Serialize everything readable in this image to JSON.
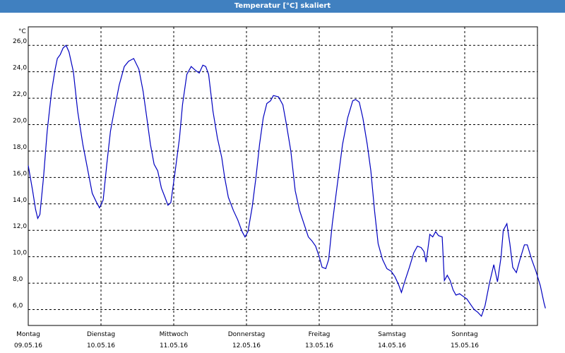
{
  "window": {
    "title": "Temperatur [°C] skaliert"
  },
  "chart_data": {
    "type": "line",
    "title": "Temperatur [°C] skaliert",
    "yunit": "°C",
    "ylim": [
      4.8,
      27.4
    ],
    "yticks": [
      6,
      8,
      10,
      12,
      14,
      16,
      18,
      20,
      22,
      24,
      26
    ],
    "ytick_labels": [
      "6,0",
      "8,0",
      "10,0",
      "12,0",
      "14,0",
      "16,0",
      "18,0",
      "20,0",
      "22,0",
      "24,0",
      "26,0"
    ],
    "xlim": [
      0,
      7
    ],
    "xticks": [
      {
        "day": "Montag",
        "date": "09.05.16"
      },
      {
        "day": "Dienstag",
        "date": "10.05.16"
      },
      {
        "day": "Mittwoch",
        "date": "11.05.16"
      },
      {
        "day": "Donnerstag",
        "date": "12.05.16"
      },
      {
        "day": "Freitag",
        "date": "13.05.16"
      },
      {
        "day": "Samstag",
        "date": "14.05.16"
      },
      {
        "day": "Sonntag",
        "date": "15.05.16"
      }
    ],
    "grid": true,
    "series": [
      {
        "color": "#0000c0",
        "points": [
          [
            0.0,
            16.9
          ],
          [
            0.06,
            15.0
          ],
          [
            0.1,
            13.6
          ],
          [
            0.13,
            12.9
          ],
          [
            0.16,
            13.2
          ],
          [
            0.21,
            16.0
          ],
          [
            0.26,
            19.5
          ],
          [
            0.32,
            22.5
          ],
          [
            0.37,
            24.2
          ],
          [
            0.4,
            25.0
          ],
          [
            0.44,
            25.3
          ],
          [
            0.48,
            25.8
          ],
          [
            0.52,
            26.0
          ],
          [
            0.56,
            25.5
          ],
          [
            0.62,
            24.0
          ],
          [
            0.68,
            21.0
          ],
          [
            0.75,
            18.5
          ],
          [
            0.82,
            16.5
          ],
          [
            0.88,
            14.8
          ],
          [
            0.94,
            14.1
          ],
          [
            0.98,
            13.7
          ],
          [
            1.03,
            14.3
          ],
          [
            1.08,
            17.0
          ],
          [
            1.13,
            19.5
          ],
          [
            1.18,
            21.0
          ],
          [
            1.25,
            23.0
          ],
          [
            1.32,
            24.4
          ],
          [
            1.38,
            24.8
          ],
          [
            1.45,
            25.0
          ],
          [
            1.52,
            24.2
          ],
          [
            1.58,
            22.5
          ],
          [
            1.63,
            20.5
          ],
          [
            1.68,
            18.5
          ],
          [
            1.73,
            17.0
          ],
          [
            1.78,
            16.5
          ],
          [
            1.83,
            15.2
          ],
          [
            1.88,
            14.5
          ],
          [
            1.92,
            13.9
          ],
          [
            1.96,
            14.1
          ],
          [
            2.02,
            16.5
          ],
          [
            2.08,
            19.0
          ],
          [
            2.12,
            21.5
          ],
          [
            2.18,
            23.8
          ],
          [
            2.24,
            24.4
          ],
          [
            2.3,
            24.1
          ],
          [
            2.35,
            23.9
          ],
          [
            2.4,
            24.5
          ],
          [
            2.44,
            24.4
          ],
          [
            2.48,
            23.8
          ],
          [
            2.54,
            21.0
          ],
          [
            2.6,
            19.0
          ],
          [
            2.66,
            17.5
          ],
          [
            2.7,
            16.0
          ],
          [
            2.75,
            14.5
          ],
          [
            2.82,
            13.5
          ],
          [
            2.88,
            12.8
          ],
          [
            2.94,
            11.9
          ],
          [
            2.98,
            11.5
          ],
          [
            3.02,
            11.9
          ],
          [
            3.08,
            13.8
          ],
          [
            3.13,
            16.0
          ],
          [
            3.18,
            18.5
          ],
          [
            3.23,
            20.5
          ],
          [
            3.28,
            21.6
          ],
          [
            3.33,
            21.8
          ],
          [
            3.37,
            22.2
          ],
          [
            3.44,
            22.1
          ],
          [
            3.5,
            21.5
          ],
          [
            3.55,
            20.0
          ],
          [
            3.61,
            18.0
          ],
          [
            3.67,
            15.0
          ],
          [
            3.73,
            13.5
          ],
          [
            3.79,
            12.5
          ],
          [
            3.85,
            11.5
          ],
          [
            3.9,
            11.2
          ],
          [
            3.95,
            10.8
          ],
          [
            4.0,
            10.0
          ],
          [
            4.04,
            9.2
          ],
          [
            4.09,
            9.1
          ],
          [
            4.13,
            9.8
          ],
          [
            4.18,
            12.5
          ],
          [
            4.25,
            15.5
          ],
          [
            4.32,
            18.5
          ],
          [
            4.39,
            20.5
          ],
          [
            4.46,
            21.8
          ],
          [
            4.5,
            21.9
          ],
          [
            4.55,
            21.7
          ],
          [
            4.6,
            20.5
          ],
          [
            4.66,
            18.5
          ],
          [
            4.71,
            16.5
          ],
          [
            4.76,
            13.5
          ],
          [
            4.81,
            11.0
          ],
          [
            4.87,
            9.8
          ],
          [
            4.93,
            9.1
          ],
          [
            4.99,
            8.9
          ],
          [
            5.04,
            8.5
          ],
          [
            5.09,
            7.9
          ],
          [
            5.13,
            7.3
          ],
          [
            5.18,
            8.2
          ],
          [
            5.24,
            9.2
          ],
          [
            5.3,
            10.3
          ],
          [
            5.35,
            10.8
          ],
          [
            5.4,
            10.7
          ],
          [
            5.44,
            10.4
          ],
          [
            5.47,
            9.6
          ],
          [
            5.52,
            11.7
          ],
          [
            5.56,
            11.5
          ],
          [
            5.6,
            11.9
          ],
          [
            5.64,
            11.6
          ],
          [
            5.69,
            11.5
          ],
          [
            5.72,
            8.2
          ],
          [
            5.76,
            8.6
          ],
          [
            5.8,
            8.2
          ],
          [
            5.84,
            7.5
          ],
          [
            5.88,
            7.1
          ],
          [
            5.93,
            7.2
          ],
          [
            5.98,
            7.0
          ],
          [
            6.03,
            6.8
          ],
          [
            6.08,
            6.4
          ],
          [
            6.13,
            6.0
          ],
          [
            6.18,
            5.8
          ],
          [
            6.23,
            5.5
          ],
          [
            6.28,
            6.3
          ],
          [
            6.34,
            8.0
          ],
          [
            6.4,
            9.4
          ],
          [
            6.45,
            8.1
          ],
          [
            6.5,
            10.0
          ],
          [
            6.53,
            12.0
          ],
          [
            6.58,
            12.5
          ],
          [
            6.62,
            11.0
          ],
          [
            6.66,
            9.2
          ],
          [
            6.71,
            8.8
          ],
          [
            6.76,
            9.8
          ],
          [
            6.82,
            10.9
          ],
          [
            6.86,
            10.9
          ],
          [
            6.92,
            9.8
          ],
          [
            6.98,
            8.9
          ],
          [
            7.04,
            7.8
          ],
          [
            7.09,
            6.5
          ],
          [
            7.11,
            6.1
          ]
        ]
      }
    ]
  }
}
